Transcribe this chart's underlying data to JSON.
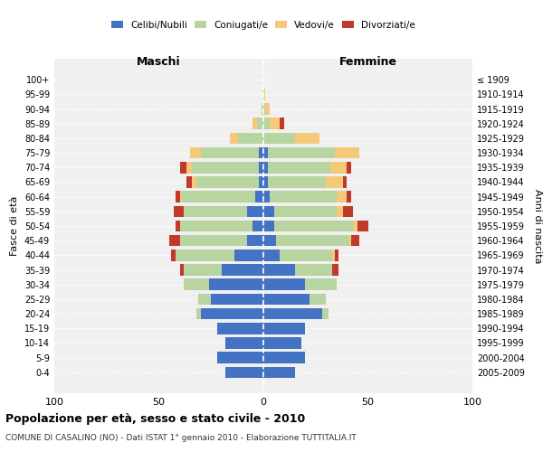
{
  "age_groups": [
    "0-4",
    "5-9",
    "10-14",
    "15-19",
    "20-24",
    "25-29",
    "30-34",
    "35-39",
    "40-44",
    "45-49",
    "50-54",
    "55-59",
    "60-64",
    "65-69",
    "70-74",
    "75-79",
    "80-84",
    "85-89",
    "90-94",
    "95-99",
    "100+"
  ],
  "birth_years": [
    "2005-2009",
    "2000-2004",
    "1995-1999",
    "1990-1994",
    "1985-1989",
    "1980-1984",
    "1975-1979",
    "1970-1974",
    "1965-1969",
    "1960-1964",
    "1955-1959",
    "1950-1954",
    "1945-1949",
    "1940-1944",
    "1935-1939",
    "1930-1934",
    "1925-1929",
    "1920-1924",
    "1915-1919",
    "1910-1914",
    "≤ 1909"
  ],
  "males": {
    "celibi": [
      18,
      22,
      18,
      22,
      30,
      25,
      26,
      20,
      14,
      8,
      5,
      8,
      4,
      2,
      2,
      2,
      0,
      0,
      0,
      0,
      0
    ],
    "coniugati": [
      0,
      0,
      0,
      0,
      2,
      6,
      12,
      18,
      28,
      32,
      35,
      30,
      35,
      30,
      32,
      28,
      12,
      3,
      1,
      0,
      0
    ],
    "vedovi": [
      0,
      0,
      0,
      0,
      0,
      0,
      0,
      0,
      0,
      0,
      0,
      0,
      1,
      2,
      3,
      5,
      4,
      2,
      0,
      0,
      0
    ],
    "divorziati": [
      0,
      0,
      0,
      0,
      0,
      0,
      0,
      2,
      2,
      5,
      2,
      5,
      2,
      3,
      3,
      0,
      0,
      0,
      0,
      0,
      0
    ]
  },
  "females": {
    "nubili": [
      15,
      20,
      18,
      20,
      28,
      22,
      20,
      15,
      8,
      6,
      5,
      5,
      3,
      2,
      2,
      2,
      0,
      0,
      0,
      0,
      0
    ],
    "coniugate": [
      0,
      0,
      0,
      0,
      3,
      8,
      15,
      18,
      25,
      35,
      38,
      30,
      32,
      28,
      30,
      32,
      15,
      3,
      1,
      0,
      0
    ],
    "vedove": [
      0,
      0,
      0,
      0,
      0,
      0,
      0,
      0,
      1,
      1,
      2,
      3,
      5,
      8,
      8,
      12,
      12,
      5,
      2,
      1,
      0
    ],
    "divorziate": [
      0,
      0,
      0,
      0,
      0,
      0,
      0,
      3,
      2,
      4,
      5,
      5,
      2,
      2,
      2,
      0,
      0,
      2,
      0,
      0,
      0
    ]
  },
  "colors": {
    "celibi": "#4472C4",
    "coniugati": "#B8D4A0",
    "vedovi": "#F5C97A",
    "divorziati": "#C0392B"
  },
  "xlim": 100,
  "title": "Popolazione per età, sesso e stato civile - 2010",
  "subtitle": "COMUNE DI CASALINO (NO) - Dati ISTAT 1° gennaio 2010 - Elaborazione TUTTITALIA.IT",
  "ylabel_left": "Fasce di età",
  "ylabel_right": "Anni di nascita",
  "xlabel_left": "Maschi",
  "xlabel_right": "Femmine"
}
